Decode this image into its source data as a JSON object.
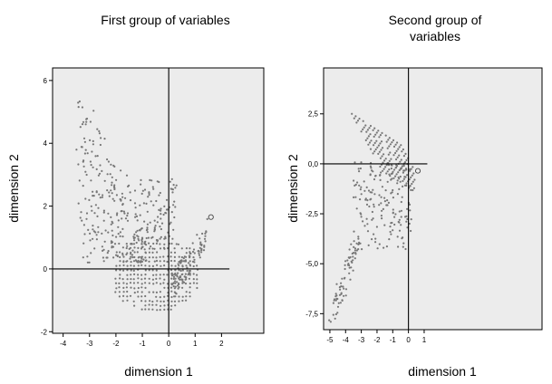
{
  "chart_data": [
    {
      "type": "scatter",
      "title": "First group of variables",
      "xlabel": "dimension 1",
      "ylabel": "dimension 2",
      "xlim": [
        -4.4,
        3.6
      ],
      "ylim": [
        -2.05,
        6.4
      ],
      "xticks": [
        -4,
        -3,
        -2,
        -1,
        0,
        1,
        2
      ],
      "xtick_labels": [
        "-4",
        "-3",
        "-2",
        "-1",
        "0",
        "1",
        "2"
      ],
      "yticks": [
        -2,
        0,
        2,
        4,
        6
      ],
      "ytick_labels": [
        "-2",
        "0",
        "2",
        "4",
        "6"
      ],
      "reference_lines": {
        "x": 0,
        "y": 0
      },
      "grid": false,
      "highlighted_point": {
        "x": 1.6,
        "y": 1.65
      }
    },
    {
      "type": "scatter",
      "title": "Second group of variables",
      "xlabel": "dimension 1",
      "ylabel": "dimension 2",
      "xlim": [
        -5.4,
        8.5
      ],
      "ylim": [
        -8.3,
        4.8
      ],
      "xticks": [
        -5,
        -4,
        -3,
        -2,
        -1,
        0,
        1
      ],
      "xtick_labels": [
        "-5",
        "-4",
        "-3",
        "-2",
        "-1",
        "0",
        "1"
      ],
      "yticks": [
        2.5,
        0,
        -2.5,
        -5,
        -7.5
      ],
      "ytick_labels": [
        "2,5",
        "0,0",
        "-2,5",
        "-5,0",
        "-7,5"
      ],
      "reference_lines": {
        "x": 0,
        "y": 0
      },
      "grid": false,
      "highlighted_point": {
        "x": 0.6,
        "y": -0.35
      }
    }
  ]
}
